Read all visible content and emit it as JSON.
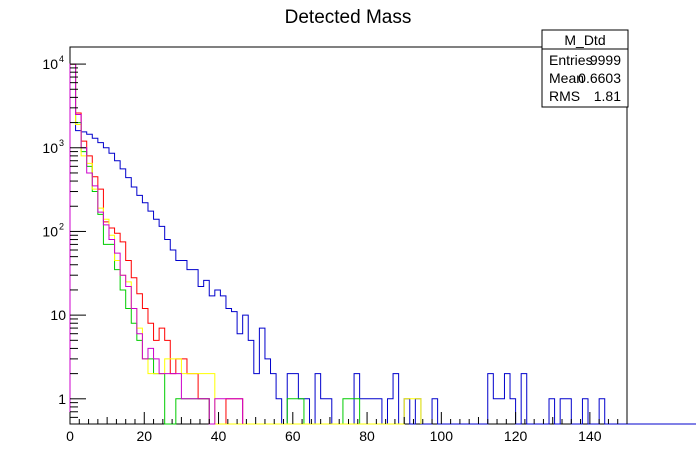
{
  "chart_data": {
    "type": "histogram",
    "title": "Detected Mass",
    "xlabel": "",
    "ylabel": "",
    "xlim": [
      0,
      150
    ],
    "ylim": [
      0.5,
      16000
    ],
    "y_scale": "log",
    "grid": false,
    "bin_width": 1.5,
    "x_ticks": [
      "0",
      "20",
      "40",
      "60",
      "80",
      "100",
      "120",
      "140"
    ],
    "x_tick_values": [
      0,
      20,
      40,
      60,
      80,
      100,
      120,
      140
    ],
    "y_ticks": [
      {
        "value": 1,
        "base": "1",
        "exp": ""
      },
      {
        "value": 10,
        "base": "10",
        "exp": ""
      },
      {
        "value": 100,
        "base": "10",
        "exp": "2"
      },
      {
        "value": 1000,
        "base": "10",
        "exp": "3"
      },
      {
        "value": 10000,
        "base": "10",
        "exp": "4"
      }
    ],
    "stats_box": {
      "name": "M_Dtd",
      "rows": [
        {
          "label": "Entries",
          "value": "9999"
        },
        {
          "label": "Mean",
          "value": "0.6603"
        },
        {
          "label": "RMS",
          "value": "1.81"
        }
      ]
    },
    "series": [
      {
        "color": "#0000cc",
        "values": [
          10000,
          1600,
          1550,
          1450,
          1300,
          1150,
          1000,
          860,
          700,
          560,
          440,
          340,
          270,
          220,
          175,
          140,
          115,
          80,
          60,
          45,
          45,
          35,
          35,
          22,
          26,
          17,
          20,
          17,
          12,
          11,
          6,
          10,
          5,
          2,
          7,
          3,
          2,
          1,
          0,
          2,
          2,
          1,
          1,
          0,
          2,
          1,
          1,
          0,
          0,
          0,
          0,
          2,
          1,
          1,
          1,
          1,
          0,
          1,
          2,
          0,
          1,
          0,
          1,
          0,
          0,
          1,
          0,
          0,
          0,
          0,
          0,
          0,
          0,
          0,
          0,
          2,
          1,
          1,
          2,
          1,
          0,
          2,
          0,
          0,
          0,
          0,
          1,
          0,
          1,
          1,
          0,
          0,
          1,
          0,
          0,
          1,
          0,
          0,
          0,
          0,
          0,
          0,
          0,
          0,
          0,
          0,
          0,
          0,
          0,
          0,
          0,
          0,
          0,
          0,
          0,
          0,
          0,
          0,
          0,
          0,
          0,
          0,
          0,
          0,
          0,
          0,
          0,
          0,
          0,
          0,
          0,
          0,
          0,
          0,
          0,
          0,
          0,
          0,
          0,
          0,
          0,
          0,
          0,
          0,
          0,
          0,
          0,
          0,
          0,
          0
        ]
      },
      {
        "color": "#ff0000",
        "values": [
          10000,
          2600,
          1200,
          800,
          450,
          320,
          130,
          110,
          95,
          75,
          45,
          28,
          18,
          12,
          8,
          5,
          7,
          5,
          2,
          3,
          3,
          2,
          2,
          1,
          1,
          0.3,
          0.3,
          0.3,
          1,
          1,
          1
        ]
      },
      {
        "color": "#00cc00",
        "values": [
          10000,
          2000,
          900,
          600,
          300,
          160,
          70,
          70,
          35,
          20,
          12,
          8,
          5,
          3,
          3,
          2,
          2,
          0.3,
          0.3,
          1,
          1,
          1,
          1,
          1,
          1,
          0,
          0,
          0,
          0,
          0,
          0,
          0,
          0,
          0,
          0,
          0,
          0,
          0,
          0,
          1,
          1,
          1,
          0,
          0,
          0,
          0,
          0,
          0,
          0,
          1,
          1,
          1
        ]
      },
      {
        "color": "#ffff00",
        "values": [
          10000,
          1900,
          800,
          650,
          320,
          190,
          140,
          90,
          45,
          30,
          25,
          12,
          7,
          3,
          2,
          2,
          2,
          3,
          3,
          3,
          2,
          2,
          2,
          2,
          2,
          2,
          0.3,
          0,
          0,
          0,
          0,
          0,
          0,
          0,
          0,
          0,
          0,
          0,
          0,
          0,
          0,
          0,
          0,
          0,
          0,
          0,
          0,
          0,
          0,
          0,
          0,
          0,
          0,
          0,
          0,
          0,
          0,
          0,
          0,
          0,
          1,
          1,
          1
        ]
      },
      {
        "color": "#cc00cc",
        "values": [
          10000,
          2500,
          1000,
          500,
          350,
          170,
          120,
          80,
          55,
          30,
          22,
          12,
          6,
          3,
          4,
          3,
          2,
          2,
          2,
          2,
          1,
          1,
          1,
          1,
          1,
          0,
          1,
          1,
          1,
          1,
          1
        ]
      }
    ]
  }
}
